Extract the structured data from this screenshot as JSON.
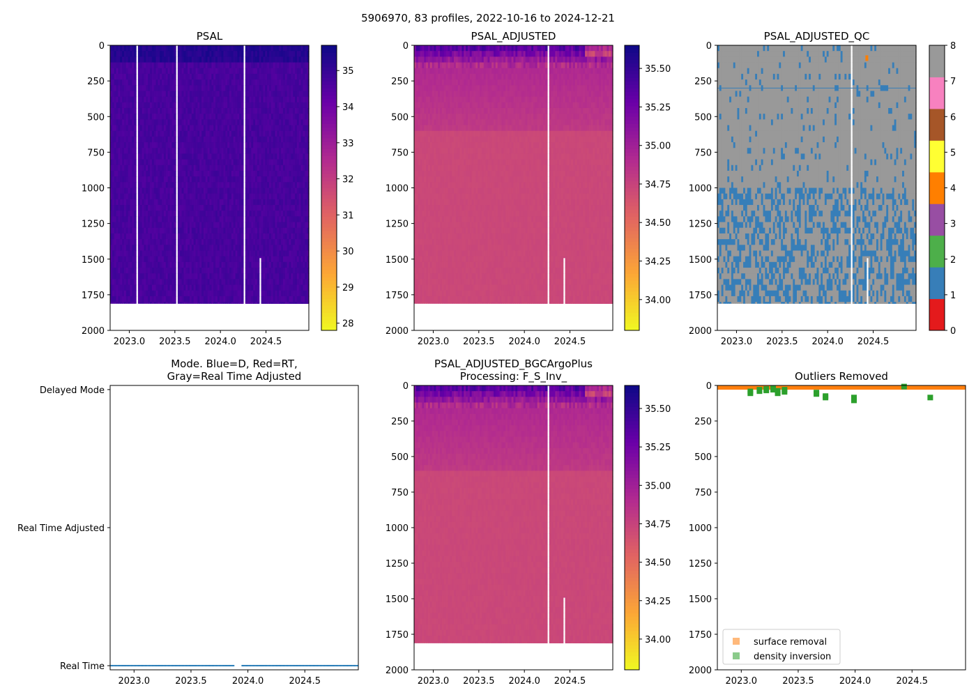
{
  "figure": {
    "suptitle": "5906970, 83 profiles, 2022-10-16 to 2024-12-21"
  },
  "colors": {
    "plasma": [
      "#0d0887",
      "#6a00a8",
      "#b12a90",
      "#e16462",
      "#fca636",
      "#f0f921"
    ],
    "qc": [
      "#e41a1c",
      "#377eb8",
      "#4daf4a",
      "#984ea3",
      "#ff7f00",
      "#ffff33",
      "#a65628",
      "#f781bf",
      "#999999"
    ],
    "mode_point": "#1f77b4",
    "surface_removal": "#ff7f0e",
    "density_inversion": "#2ca02c"
  },
  "chart_data": [
    {
      "id": "psal",
      "type": "heatmap",
      "title": "PSAL",
      "x_ticks": [
        "2023.0",
        "2023.5",
        "2024.0",
        "2024.5"
      ],
      "x_tick_values": [
        2023.0,
        2023.5,
        2024.0,
        2024.5
      ],
      "xlim": [
        2022.79,
        2024.97
      ],
      "y_ticks": [
        "0",
        "250",
        "500",
        "750",
        "1000",
        "1250",
        "1500",
        "1750",
        "2000"
      ],
      "y_tick_values": [
        0,
        250,
        500,
        750,
        1000,
        1250,
        1500,
        1750,
        2000
      ],
      "ylim": [
        2000,
        0
      ],
      "colorbar": {
        "range": [
          27.8,
          35.7
        ],
        "ticks": [
          "28",
          "29",
          "30",
          "31",
          "32",
          "33",
          "34",
          "35"
        ],
        "tick_values": [
          28,
          29,
          30,
          31,
          32,
          33,
          34,
          35
        ]
      },
      "value_profile": {
        "surface": 35.3,
        "mid": 35.1,
        "deep": 35.0
      }
    },
    {
      "id": "psal_adj",
      "type": "heatmap",
      "title": "PSAL_ADJUSTED",
      "x_ticks": [
        "2023.0",
        "2023.5",
        "2024.0",
        "2024.5"
      ],
      "x_tick_values": [
        2023.0,
        2023.5,
        2024.0,
        2024.5
      ],
      "xlim": [
        2022.79,
        2024.97
      ],
      "y_ticks": [
        "0",
        "250",
        "500",
        "750",
        "1000",
        "1250",
        "1500",
        "1750",
        "2000"
      ],
      "y_tick_values": [
        0,
        250,
        500,
        750,
        1000,
        1250,
        1500,
        1750,
        2000
      ],
      "ylim": [
        2000,
        0
      ],
      "colorbar": {
        "range": [
          33.8,
          35.65
        ],
        "ticks": [
          "34.00",
          "34.25",
          "34.50",
          "34.75",
          "35.00",
          "35.25",
          "35.50"
        ],
        "tick_values": [
          34.0,
          34.25,
          34.5,
          34.75,
          35.0,
          35.25,
          35.5
        ]
      },
      "value_profile": {
        "surface": 35.35,
        "mid": 34.8,
        "deep": 34.72
      }
    },
    {
      "id": "psal_qc",
      "type": "heatmap",
      "title": "PSAL_ADJUSTED_QC",
      "x_ticks": [
        "2023.0",
        "2023.5",
        "2024.0",
        "2024.5"
      ],
      "x_tick_values": [
        2023.0,
        2023.5,
        2024.0,
        2024.5
      ],
      "xlim": [
        2022.79,
        2024.97
      ],
      "y_ticks": [
        "0",
        "250",
        "500",
        "750",
        "1000",
        "1250",
        "1500",
        "1750",
        "2000"
      ],
      "y_tick_values": [
        0,
        250,
        500,
        750,
        1000,
        1250,
        1500,
        1750,
        2000
      ],
      "ylim": [
        2000,
        0
      ],
      "colorbar": {
        "range": [
          0,
          8
        ],
        "ticks": [
          "0",
          "1",
          "2",
          "3",
          "4",
          "5",
          "6",
          "7",
          "8"
        ],
        "tick_values": [
          0,
          1,
          2,
          3,
          4,
          5,
          6,
          7,
          8
        ]
      },
      "dominant_flags": [
        8,
        1
      ],
      "flag_change_depth": 1000,
      "special_marks": [
        {
          "x": 2024.43,
          "y": 90,
          "flag": 4
        }
      ]
    },
    {
      "id": "mode",
      "type": "scatter",
      "title_lines": [
        "Mode. Blue=D, Red=RT,",
        "Gray=Real Time Adjusted"
      ],
      "x_ticks": [
        "2023.0",
        "2023.5",
        "2024.0",
        "2024.5"
      ],
      "x_tick_values": [
        2023.0,
        2023.5,
        2024.0,
        2024.5
      ],
      "xlim": [
        2022.79,
        2024.97
      ],
      "y_categories": [
        "Real Time",
        "Real Time Adjusted",
        "Delayed Mode"
      ],
      "y_category_values": [
        0,
        1,
        2
      ],
      "ylim": [
        -0.03,
        2.03
      ],
      "series": [
        {
          "name": "Real Time",
          "y": 0,
          "x_start": 2022.8,
          "x_end": 2024.97,
          "gaps": [
            [
              2023.88,
              2023.94
            ]
          ]
        }
      ]
    },
    {
      "id": "psal_bgc",
      "type": "heatmap",
      "title_lines": [
        "PSAL_ADJUSTED_BGCArgoPlus",
        "Processing: F_S_Inv_"
      ],
      "x_ticks": [
        "2023.0",
        "2023.5",
        "2024.0",
        "2024.5"
      ],
      "x_tick_values": [
        2023.0,
        2023.5,
        2024.0,
        2024.5
      ],
      "xlim": [
        2022.79,
        2024.97
      ],
      "y_ticks": [
        "0",
        "250",
        "500",
        "750",
        "1000",
        "1250",
        "1500",
        "1750",
        "2000"
      ],
      "y_tick_values": [
        0,
        250,
        500,
        750,
        1000,
        1250,
        1500,
        1750,
        2000
      ],
      "ylim": [
        2000,
        0
      ],
      "colorbar": {
        "range": [
          33.8,
          35.65
        ],
        "ticks": [
          "34.00",
          "34.25",
          "34.50",
          "34.75",
          "35.00",
          "35.25",
          "35.50"
        ],
        "tick_values": [
          34.0,
          34.25,
          34.5,
          34.75,
          35.0,
          35.25,
          35.5
        ]
      },
      "value_profile": {
        "surface": 35.35,
        "mid": 34.8,
        "deep": 34.72
      }
    },
    {
      "id": "outliers",
      "type": "scatter",
      "title": "Outliers Removed",
      "x_ticks": [
        "2023.0",
        "2023.5",
        "2024.0",
        "2024.5"
      ],
      "x_tick_values": [
        2023.0,
        2023.5,
        2024.0,
        2024.5
      ],
      "xlim": [
        2022.79,
        2024.97
      ],
      "y_ticks": [
        "0",
        "250",
        "500",
        "750",
        "1000",
        "1250",
        "1500",
        "1750",
        "2000"
      ],
      "y_tick_values": [
        0,
        250,
        500,
        750,
        1000,
        1250,
        1500,
        1750,
        2000
      ],
      "ylim": [
        2000,
        0
      ],
      "surface_removal_depth": [
        0,
        20
      ],
      "series": [
        {
          "name": "surface removal",
          "points": []
        },
        {
          "name": "density inversion",
          "points": [
            [
              2023.08,
              42
            ],
            [
              2023.08,
              55
            ],
            [
              2023.16,
              30
            ],
            [
              2023.16,
              40
            ],
            [
              2023.22,
              25
            ],
            [
              2023.22,
              35
            ],
            [
              2023.28,
              20
            ],
            [
              2023.28,
              30
            ],
            [
              2023.32,
              38
            ],
            [
              2023.32,
              55
            ],
            [
              2023.38,
              30
            ],
            [
              2023.38,
              45
            ],
            [
              2023.66,
              50
            ],
            [
              2023.66,
              60
            ],
            [
              2023.74,
              75
            ],
            [
              2023.74,
              85
            ],
            [
              2023.99,
              85
            ],
            [
              2023.99,
              105
            ],
            [
              2024.43,
              8
            ],
            [
              2024.66,
              85
            ]
          ]
        }
      ],
      "legend": [
        "surface removal",
        "density inversion"
      ],
      "legend_position": "lower-left"
    }
  ]
}
